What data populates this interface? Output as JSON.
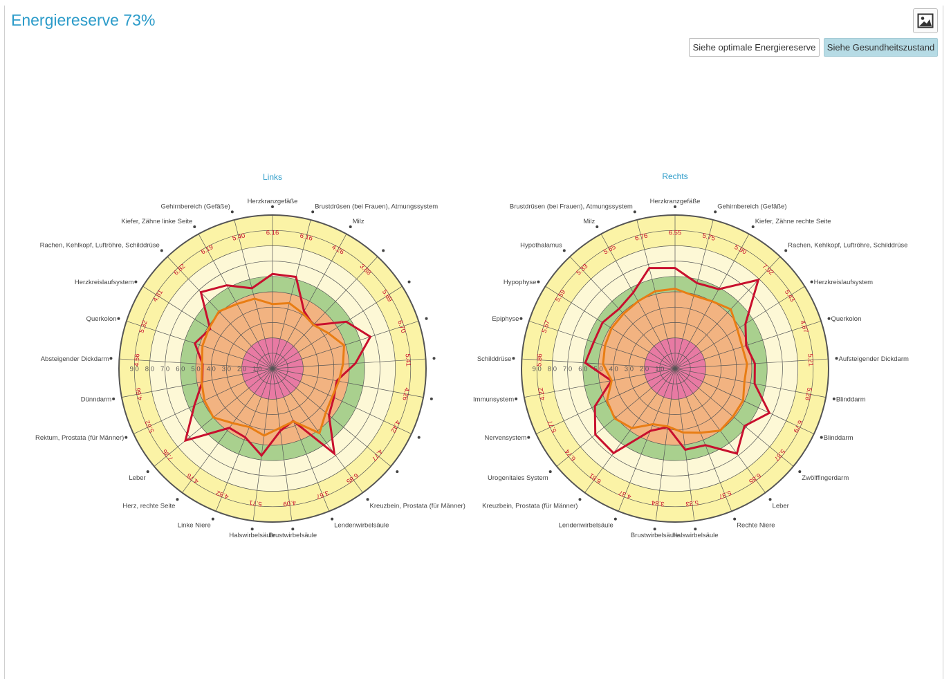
{
  "header": {
    "title": "Energiereserve 73%",
    "image_icon": "image-icon",
    "buttons": {
      "optimal": "Siehe optimale Energiereserve",
      "health": "Siehe Gesundheitszustand"
    }
  },
  "colors": {
    "accent": "#2b9bc9",
    "red_series": "#c8102e",
    "orange_series": "#e87d14",
    "zone_yellow": "#fbf3a6",
    "zone_cream": "#fdf8d6",
    "zone_green": "#a9d08e",
    "zone_orange": "#f2b381",
    "zone_pink": "#e87aa3"
  },
  "chart_data": [
    {
      "type": "radar",
      "title": "Links",
      "radial_ticks": [
        "1.0",
        "2.0",
        "3.0",
        "4.0",
        "5.0",
        "6.0",
        "7.0",
        "8.0",
        "9.0"
      ],
      "categories": [
        "Herzkranzgefäße",
        "Brustdrüsen (bei Frauen), Atmungssystem",
        "Milz",
        "",
        "",
        "",
        "",
        "",
        "",
        "",
        "Kreuzbein, Prostata (für Männer)",
        "Lendenwirbelsäule",
        "Brustwirbelsäule",
        "Halswirbelsäule",
        "Linke Niere",
        "Herz, rechte Seite",
        "Leber",
        "Rektum, Prostata (für Männer)",
        "Dünndarm",
        "Absteigender Dickdarm",
        "Querkolon",
        "Herzkreislaufsystem",
        "Rachen, Kehlkopf, Luftröhre, Schilddrüse",
        "Kiefer, Zähne linke Seite",
        "Gehirnbereich (Gefäße)"
      ],
      "value_labels": [
        "6.16",
        "6.16",
        "4.26",
        "3.88",
        "5.69",
        "6.70",
        "5.41",
        "4.26",
        "4.42",
        "4.77",
        "6.85",
        "3.67",
        "4.09",
        "5.71",
        "4.82",
        "4.78",
        "7.36",
        "5.62",
        "4.66",
        "4.56",
        "5.32",
        "4.81",
        "6.82",
        "6.19",
        "5.40"
      ],
      "series": [
        {
          "values": [
            6.16,
            6.16,
            4.26,
            3.88,
            5.69,
            6.7,
            5.41,
            4.26,
            4.42,
            4.77,
            6.85,
            3.67,
            4.09,
            5.71,
            4.82,
            4.78,
            7.36,
            5.62,
            4.66,
            4.56,
            5.32,
            4.81,
            6.82,
            6.19,
            5.4
          ]
        },
        {
          "values": [
            4.2,
            4.4,
            4.1,
            3.9,
            4.3,
            4.9,
            4.6,
            4.4,
            4.3,
            4.5,
            5.2,
            3.7,
            3.9,
            4.4,
            4.1,
            4.4,
            5.0,
            4.9,
            4.7,
            4.6,
            4.8,
            4.9,
            5.1,
            4.8,
            4.7
          ]
        }
      ],
      "rlim": [
        0,
        10
      ]
    },
    {
      "type": "radar",
      "title": "Rechts",
      "radial_ticks": [
        "1.0",
        "2.0",
        "3.0",
        "4.0",
        "5.0",
        "6.0",
        "7.0",
        "8.0",
        "9.0"
      ],
      "categories": [
        "Herzkranzgefäße",
        "Gehirnbereich (Gefäße)",
        "Kiefer, Zähne rechte Seite",
        "Rachen, Kehlkopf, Luftröhre, Schilddrüse",
        "Herzkreislaufsystem",
        "Querkolon",
        "Aufsteigender Dickdarm",
        "Blinddarm",
        "Blinddarm",
        "Zwölffingerdarm",
        "Leber",
        "Rechte Niere",
        "Halswirbelsäule",
        "Brustwirbelsäule",
        "Lendenwirbelsäule",
        "Kreuzbein, Prostata (für Männer)",
        "Urogenitales System",
        "Nervensystem",
        "Immunsystem",
        "Schilddrüse",
        "Epiphyse",
        "Hypophyse",
        "Hypothalamus",
        "Milz",
        "Brustdrüsen (bei Frauen), Atmungssystem"
      ],
      "value_labels": [
        "6.55",
        "5.75",
        "5.90",
        "7.92",
        "5.43",
        "4.87",
        "5.21",
        "5.28",
        "6.79",
        "5.87",
        "6.85",
        "5.37",
        "5.33",
        "3.84",
        "4.37",
        "6.81",
        "6.74",
        "5.77",
        "4.22",
        "5.86",
        "5.57",
        "5.59",
        "5.33",
        "5.65",
        "6.76"
      ],
      "series": [
        {
          "values": [
            6.55,
            5.75,
            5.9,
            7.92,
            5.43,
            4.87,
            5.21,
            5.28,
            6.79,
            5.87,
            6.85,
            5.37,
            5.33,
            3.84,
            4.37,
            6.81,
            6.74,
            5.77,
            4.22,
            5.86,
            5.57,
            5.59,
            5.33,
            5.65,
            6.76
          ]
        },
        {
          "values": [
            5.2,
            4.9,
            5.0,
            5.3,
            4.8,
            4.6,
            4.7,
            4.6,
            4.9,
            4.9,
            5.0,
            4.5,
            4.2,
            3.8,
            3.9,
            4.8,
            5.1,
            4.9,
            4.2,
            4.7,
            4.8,
            4.9,
            4.9,
            5.0,
            5.2
          ]
        }
      ],
      "rlim": [
        0,
        10
      ]
    }
  ]
}
